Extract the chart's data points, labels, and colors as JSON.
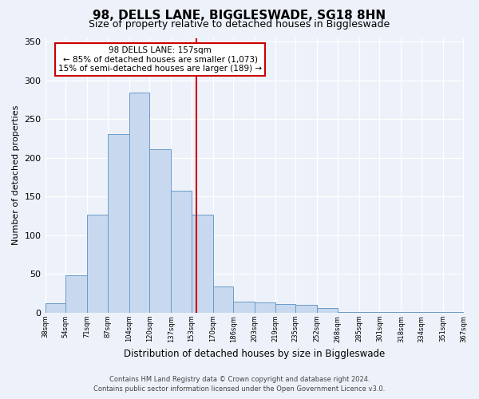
{
  "title": "98, DELLS LANE, BIGGLESWADE, SG18 8HN",
  "subtitle": "Size of property relative to detached houses in Biggleswade",
  "xlabel": "Distribution of detached houses by size in Biggleswade",
  "ylabel": "Number of detached properties",
  "bar_edges": [
    38,
    54,
    71,
    87,
    104,
    120,
    137,
    153,
    170,
    186,
    203,
    219,
    235,
    252,
    268,
    285,
    301,
    318,
    334,
    351,
    367
  ],
  "bar_heights": [
    12,
    48,
    127,
    231,
    284,
    211,
    158,
    127,
    34,
    14,
    13,
    11,
    10,
    6,
    1,
    1,
    1,
    1,
    1,
    1
  ],
  "bar_color": "#c8d9ef",
  "bar_edge_color": "#6b9bc8",
  "vline_x": 157,
  "vline_color": "#cc0000",
  "annotation_title": "98 DELLS LANE: 157sqm",
  "annotation_line1": "← 85% of detached houses are smaller (1,073)",
  "annotation_line2": "15% of semi-detached houses are larger (189) →",
  "annotation_box_facecolor": "#ffffff",
  "annotation_box_edgecolor": "#cc0000",
  "ylim": [
    0,
    355
  ],
  "yticks": [
    0,
    50,
    100,
    150,
    200,
    250,
    300,
    350
  ],
  "tick_labels": [
    "38sqm",
    "54sqm",
    "71sqm",
    "87sqm",
    "104sqm",
    "120sqm",
    "137sqm",
    "153sqm",
    "170sqm",
    "186sqm",
    "203sqm",
    "219sqm",
    "235sqm",
    "252sqm",
    "268sqm",
    "285sqm",
    "301sqm",
    "318sqm",
    "334sqm",
    "351sqm",
    "367sqm"
  ],
  "footnote1": "Contains HM Land Registry data © Crown copyright and database right 2024.",
  "footnote2": "Contains public sector information licensed under the Open Government Licence v3.0.",
  "bg_color": "#edf2fa",
  "plot_bg_color": "#edf2fa",
  "grid_color": "#ffffff",
  "title_fontsize": 11,
  "subtitle_fontsize": 9,
  "xlabel_fontsize": 8.5,
  "ylabel_fontsize": 8,
  "footnote_fontsize": 6,
  "annotation_fontsize": 7.5
}
